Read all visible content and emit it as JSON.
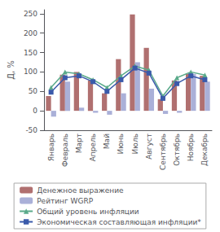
{
  "chart_data": {
    "type": "bar",
    "ylabel": "Д, %",
    "categories": [
      "Январь",
      "Февраль",
      "Март",
      "Апрель",
      "Май",
      "Июнь",
      "Июль",
      "Август",
      "Сентябрь",
      "Октябрь",
      "Ноябрь",
      "Декабрь"
    ],
    "series": [
      {
        "name": "Денежное выражение",
        "type": "bar",
        "color": "#b07070",
        "values": [
          38,
          93,
          100,
          78,
          45,
          133,
          248,
          162,
          30,
          78,
          95,
          90
        ]
      },
      {
        "name": "Рейтинг WGRP",
        "type": "bar",
        "color": "#aab0d8",
        "values": [
          -15,
          75,
          8,
          -5,
          -10,
          45,
          125,
          57,
          -8,
          -5,
          95,
          75
        ]
      },
      {
        "name": "Общий уровень инфляции",
        "type": "line",
        "color": "#5aaa8a",
        "marker": "triangle",
        "values": [
          60,
          100,
          95,
          80,
          60,
          90,
          115,
          105,
          38,
          85,
          100,
          92
        ]
      },
      {
        "name": "Экономическая составляющая инфляции*",
        "type": "line",
        "color": "#3a5aaa",
        "marker": "square",
        "values": [
          48,
          85,
          90,
          75,
          50,
          80,
          110,
          97,
          32,
          70,
          90,
          80
        ]
      }
    ],
    "ylim": [
      -50,
      260
    ],
    "yticks": [
      -50,
      0,
      50,
      100,
      150,
      200,
      250
    ],
    "grid": false,
    "legend": "bottom"
  }
}
